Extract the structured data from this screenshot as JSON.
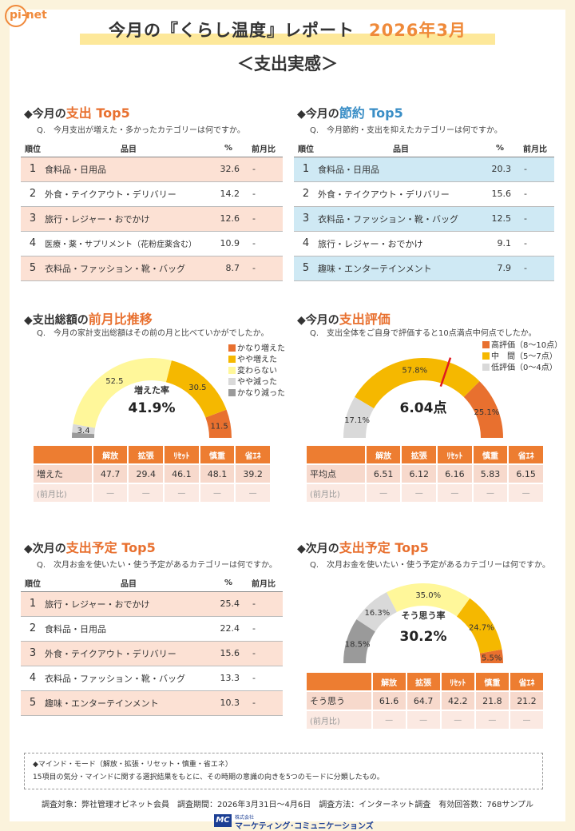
{
  "header": {
    "logo": "pi-net",
    "title": "今月の『くらし温度』レポート",
    "date": "2026年3月",
    "subtitle": "＜支出実感＞"
  },
  "spend_top5": {
    "title_pre": "◆今月の",
    "title_hl": "支出 Top5",
    "question": "Q.　今月支出が増えた・多かったカテゴリーは何ですか。",
    "headers": [
      "順位",
      "品目",
      "%",
      "前月比"
    ],
    "rows": [
      {
        "rank": "1",
        "item": "食料品・日用品",
        "pct": "32.6",
        "diff": "-"
      },
      {
        "rank": "2",
        "item": "外食・テイクアウト・デリバリー",
        "pct": "14.2",
        "diff": "-"
      },
      {
        "rank": "3",
        "item": "旅行・レジャー・おでかけ",
        "pct": "12.6",
        "diff": "-"
      },
      {
        "rank": "4",
        "item": "医療・薬・サプリメント（花粉症薬含む）",
        "pct": "10.9",
        "diff": "-"
      },
      {
        "rank": "5",
        "item": "衣料品・ファッション・靴・バッグ",
        "pct": "8.7",
        "diff": "-"
      }
    ]
  },
  "save_top5": {
    "title_pre": "◆今月の",
    "title_hl": "節約 Top5",
    "question": "Q.　今月節約・支出を抑えたカテゴリーは何ですか。",
    "headers": [
      "順位",
      "品目",
      "%",
      "前月比"
    ],
    "rows": [
      {
        "rank": "1",
        "item": "食料品・日用品",
        "pct": "20.3",
        "diff": "-"
      },
      {
        "rank": "2",
        "item": "外食・テイクアウト・デリバリー",
        "pct": "15.6",
        "diff": "-"
      },
      {
        "rank": "3",
        "item": "衣料品・ファッション・靴・バッグ",
        "pct": "12.5",
        "diff": "-"
      },
      {
        "rank": "4",
        "item": "旅行・レジャー・おでかけ",
        "pct": "9.1",
        "diff": "-"
      },
      {
        "rank": "5",
        "item": "趣味・エンターテインメント",
        "pct": "7.9",
        "diff": "-"
      }
    ]
  },
  "trend": {
    "title_pre": "◆支出総額の",
    "title_hl": "前月比推移",
    "question": "Q.　今月の家計支出総額はその前の月と比べていかがでしたか。",
    "center_label": "増えた率",
    "center_value": "41.9%",
    "legend": [
      "かなり増えた",
      "やや増えた",
      "変わらない",
      "やや減った",
      "かなり減った"
    ],
    "colors": [
      "#e8702f",
      "#f5b800",
      "#fff79a",
      "#d9d9d9",
      "#9a9a9a"
    ],
    "values": [
      11.5,
      30.5,
      52.5,
      3.4,
      2.1
    ],
    "labels": [
      "11.5",
      "30.5",
      "52.5",
      "3.4",
      ""
    ],
    "table_headers": [
      "",
      "解放",
      "拡張",
      "ﾘｾｯﾄ",
      "慎重",
      "省ｴﾈ"
    ],
    "row1": [
      "増えた",
      "47.7",
      "29.4",
      "46.1",
      "48.1",
      "39.2"
    ],
    "row2": [
      "(前月比)",
      "—",
      "—",
      "—",
      "—",
      "—"
    ]
  },
  "eval": {
    "title_pre": "◆今月の",
    "title_hl": "支出評価",
    "question": "Q.　支出全体をご自身で評価すると10点満点中何点でしたか。",
    "center_value": "6.04点",
    "legend": [
      "高評価（8～10点）",
      "中　間（5～7点）",
      "低評価（0～4点）"
    ],
    "colors": [
      "#e8702f",
      "#f5b800",
      "#d9d9d9"
    ],
    "values": [
      25.1,
      57.8,
      17.1
    ],
    "labels": [
      "25.1%",
      "57.8%",
      "17.1%"
    ],
    "needle_score": 6.04,
    "table_headers": [
      "",
      "解放",
      "拡張",
      "ﾘｾｯﾄ",
      "慎重",
      "省ｴﾈ"
    ],
    "row1": [
      "平均点",
      "6.51",
      "6.12",
      "6.16",
      "5.83",
      "6.15"
    ],
    "row2": [
      "(前月比)",
      "—",
      "—",
      "—",
      "—",
      "—"
    ]
  },
  "plan_top5": {
    "title_pre": "◆次月の",
    "title_hl": "支出予定 Top5",
    "question": "Q.　次月お金を使いたい・使う予定があるカテゴリーは何ですか。",
    "headers": [
      "順位",
      "品目",
      "%",
      "前月比"
    ],
    "rows": [
      {
        "rank": "1",
        "item": "旅行・レジャー・おでかけ",
        "pct": "25.4",
        "diff": "-"
      },
      {
        "rank": "2",
        "item": "食料品・日用品",
        "pct": "22.4",
        "diff": "-"
      },
      {
        "rank": "3",
        "item": "外食・テイクアウト・デリバリー",
        "pct": "15.6",
        "diff": "-"
      },
      {
        "rank": "4",
        "item": "衣料品・ファッション・靴・バッグ",
        "pct": "13.3",
        "diff": "-"
      },
      {
        "rank": "5",
        "item": "趣味・エンターテインメント",
        "pct": "10.3",
        "diff": "-"
      }
    ]
  },
  "plan_agree": {
    "title_pre": "◆次月の",
    "title_hl": "支出予定 Top5",
    "question": "Q.　次月お金を使いたい・使う予定があるカテゴリーは何ですか。",
    "center_label": "そう思う率",
    "center_value": "30.2%",
    "colors": [
      "#e8702f",
      "#f5b800",
      "#fff79a",
      "#d9d9d9",
      "#9a9a9a"
    ],
    "values": [
      5.5,
      24.7,
      35.0,
      16.3,
      18.5
    ],
    "labels": [
      "5.5%",
      "24.7%",
      "35.0%",
      "16.3%",
      "18.5%"
    ],
    "table_headers": [
      "",
      "解放",
      "拡張",
      "ﾘｾｯﾄ",
      "慎重",
      "省ｴﾈ"
    ],
    "row1": [
      "そう思う",
      "61.6",
      "64.7",
      "42.2",
      "21.8",
      "21.2"
    ],
    "row2": [
      "(前月比)",
      "—",
      "—",
      "—",
      "—",
      "—"
    ]
  },
  "note": {
    "title": "◆マインド・モード（解放・拡張・リセット・慎重・省エネ）",
    "text": "15項目の気分・マインドに関する選択結果をもとに、その時期の意識の向きを5つのモードに分類したもの。"
  },
  "footer": {
    "text": "調査対象：弊社管理オピネット会員　調査期間：2026年3月31日～4月6日　調査方法：インターネット調査　有効回答数：768サンプル",
    "corp_small": "株式会社",
    "corp_name": "マーケティング･コミュニケーションズ",
    "corp_mark": "MC"
  }
}
